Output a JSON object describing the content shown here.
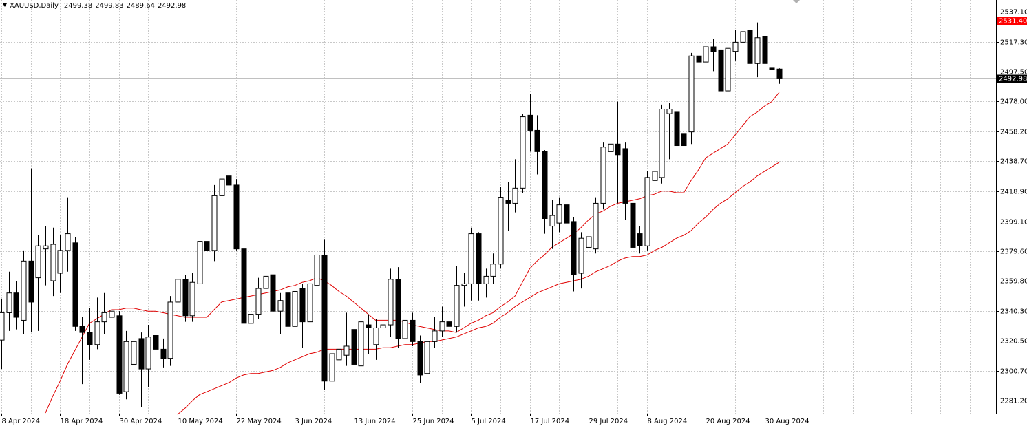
{
  "chart_data": {
    "type": "candlestick",
    "title": "XAUUSD,Daily",
    "categories": [
      "8 Apr 2024",
      null,
      null,
      null,
      null,
      null,
      null,
      null,
      "18 Apr 2024",
      null,
      null,
      null,
      null,
      null,
      null,
      null,
      "30 Apr 2024",
      null,
      null,
      null,
      null,
      null,
      null,
      null,
      "10 May 2024",
      null,
      null,
      null,
      null,
      null,
      null,
      null,
      "22 May 2024",
      null,
      null,
      null,
      null,
      null,
      null,
      null,
      "3 Jun 2024",
      null,
      null,
      null,
      null,
      null,
      null,
      null,
      "13 Jun 2024",
      null,
      null,
      null,
      null,
      null,
      null,
      null,
      "25 Jun 2024",
      null,
      null,
      null,
      null,
      null,
      null,
      null,
      "5 Jul 2024",
      null,
      null,
      null,
      null,
      null,
      null,
      null,
      "17 Jul 2024",
      null,
      null,
      null,
      null,
      null,
      null,
      null,
      "29 Jul 2024",
      null,
      null,
      null,
      null,
      null,
      null,
      null,
      "8 Aug 2024",
      null,
      null,
      null,
      null,
      null,
      null,
      null,
      "20 Aug 2024",
      null,
      null,
      null,
      null,
      null,
      null,
      null,
      "30 Aug 2024",
      null,
      null
    ],
    "open": [
      2321,
      2339,
      2352,
      2334,
      2373,
      2362,
      2381,
      2360,
      2365,
      2380,
      2385,
      2330,
      2326,
      2318,
      2333,
      2336,
      2337,
      2287,
      2305,
      2322,
      2302,
      2324,
      2315,
      2309,
      2346,
      2361,
      2337,
      2358,
      2386,
      2380,
      2416,
      2429,
      2423,
      2381,
      2332,
      2338,
      2355,
      2364,
      2340,
      2352,
      2330,
      2355,
      2333,
      2357,
      2377,
      2294,
      2308,
      2311,
      2328,
      2304,
      2331,
      2318,
      2329,
      2331,
      2361,
      2322,
      2334,
      2320,
      2299,
      2320,
      2327,
      2333,
      2330,
      2357,
      2358,
      2391,
      2358,
      2363,
      2371,
      2413,
      2411,
      2421,
      2469,
      2459,
      2445,
      2396,
      2398,
      2410,
      2399,
      2365,
      2382,
      2381,
      2411,
      2445,
      2450,
      2447,
      2411,
      2391,
      2383,
      2426,
      2428,
      2470,
      2471,
      2457,
      2458,
      2508,
      2504,
      2514,
      2512,
      2485,
      2511,
      2517,
      2525,
      2503,
      2521,
      2500,
      2499.38
    ],
    "high": [
      2348,
      2366,
      2360,
      2380,
      2434,
      2390,
      2396,
      2395,
      2390,
      2415,
      2389,
      2336,
      2342,
      2349,
      2352,
      2347,
      2340,
      2327,
      2325,
      2326,
      2331,
      2330,
      2322,
      2350,
      2378,
      2364,
      2365,
      2390,
      2396,
      2423,
      2452,
      2434,
      2427,
      2384,
      2346,
      2362,
      2371,
      2366,
      2352,
      2357,
      2358,
      2358,
      2363,
      2380,
      2387,
      2318,
      2321,
      2339,
      2329,
      2342,
      2338,
      2335,
      2343,
      2368,
      2369,
      2342,
      2339,
      2324,
      2325,
      2336,
      2343,
      2341,
      2370,
      2365,
      2395,
      2392,
      2368,
      2378,
      2422,
      2425,
      2440,
      2470,
      2483,
      2469,
      2446,
      2413,
      2415,
      2423,
      2402,
      2392,
      2396,
      2415,
      2451,
      2461,
      2478,
      2451,
      2414,
      2396,
      2432,
      2440,
      2476,
      2477,
      2481,
      2464,
      2510,
      2512,
      2531.4,
      2519,
      2516,
      2516,
      2525,
      2530,
      2531,
      2530,
      2527,
      2506,
      2499.83
    ],
    "low": [
      2302,
      2327,
      2328,
      2325,
      2326,
      2327,
      2357,
      2350,
      2352,
      2366,
      2327,
      2292,
      2308,
      2315,
      2325,
      2330,
      2285,
      2282,
      2295,
      2277,
      2290,
      2306,
      2303,
      2304,
      2342,
      2333,
      2333,
      2352,
      2365,
      2373,
      2400,
      2404,
      2380,
      2330,
      2327,
      2335,
      2347,
      2336,
      2325,
      2319,
      2325,
      2316,
      2330,
      2355,
      2288,
      2288,
      2303,
      2304,
      2300,
      2300,
      2312,
      2308,
      2320,
      2323,
      2316,
      2318,
      2317,
      2293,
      2296,
      2316,
      2323,
      2326,
      2326,
      2343,
      2347,
      2347,
      2349,
      2358,
      2368,
      2393,
      2405,
      2418,
      2445,
      2430,
      2391,
      2381,
      2392,
      2384,
      2353,
      2355,
      2370,
      2378,
      2407,
      2428,
      2411,
      2400,
      2364,
      2378,
      2380,
      2420,
      2424,
      2440,
      2437,
      2432,
      2450,
      2480,
      2495,
      2498,
      2474,
      2484,
      2505,
      2500,
      2492,
      2494,
      2499,
      2489,
      2489.64
    ],
    "close": [
      2339,
      2352,
      2336,
      2373,
      2346,
      2383,
      2383,
      2384,
      2380,
      2391,
      2330,
      2326,
      2318,
      2333,
      2339,
      2340,
      2286,
      2320,
      2320,
      2302,
      2323,
      2315,
      2309,
      2346,
      2361,
      2337,
      2359,
      2386,
      2380,
      2416,
      2427,
      2423,
      2381,
      2332,
      2338,
      2355,
      2363,
      2340,
      2347,
      2330,
      2353,
      2333,
      2358,
      2377,
      2294,
      2312,
      2315,
      2317,
      2305,
      2333,
      2329,
      2329,
      2331,
      2361,
      2322,
      2334,
      2320,
      2298,
      2320,
      2327,
      2333,
      2330,
      2357,
      2358,
      2391,
      2358,
      2363,
      2371,
      2415,
      2411,
      2421,
      2468,
      2459,
      2445,
      2401,
      2403,
      2410,
      2398,
      2364,
      2388,
      2389,
      2411,
      2448,
      2450,
      2443,
      2411,
      2382,
      2383,
      2428,
      2432,
      2473,
      2473,
      2449,
      2449,
      2508,
      2504,
      2514,
      2511,
      2485,
      2513,
      2517,
      2524,
      2503,
      2520,
      2503,
      2499,
      2492.98
    ],
    "up_color": "#ffffff",
    "down_color": "#000000",
    "series": [
      {
        "color": "#e00000",
        "values": [
          null,
          null,
          null,
          null,
          null,
          null,
          2273,
          2284,
          2294,
          2305,
          2314,
          2323,
          2332,
          2335,
          2338,
          2341,
          2341,
          2342,
          2342,
          2341,
          2340,
          2340,
          2339,
          2338,
          2337,
          2336,
          2336,
          2336,
          2336,
          2341,
          2346,
          2347,
          2348,
          2349,
          2350,
          2351,
          2352,
          2353,
          2354,
          2356,
          2357,
          2359,
          2360,
          2362,
          2360,
          2357,
          2353,
          2350,
          2346,
          2342,
          2338,
          2334,
          2334,
          2334,
          2334,
          2333,
          2331,
          2330,
          2329,
          2328,
          2327,
          2327,
          2326,
          2329,
          2332,
          2334,
          2337,
          2339,
          2343,
          2346,
          2350,
          2359,
          2368,
          2373,
          2377,
          2382,
          2385,
          2388,
          2391,
          2395,
          2400,
          2404,
          2406,
          2409,
          2411,
          2412,
          2413,
          2414,
          2416,
          2417,
          2419,
          2419,
          2418,
          2418,
          2426,
          2433,
          2441,
          2444,
          2447,
          2450,
          2456,
          2462,
          2468,
          2471,
          2475,
          2478,
          2484
        ]
      },
      {
        "color": "#e00000",
        "values": [
          null,
          null,
          null,
          null,
          null,
          null,
          null,
          null,
          null,
          null,
          null,
          null,
          null,
          null,
          null,
          null,
          null,
          null,
          null,
          null,
          null,
          null,
          null,
          null,
          2272,
          2276,
          2281,
          2285,
          2287,
          2289,
          2291,
          2293,
          2296,
          2298,
          2299,
          2299,
          2300,
          2301,
          2303,
          2306,
          2308,
          2310,
          2312,
          2313,
          2315,
          2315,
          2315,
          2315,
          2315,
          2315,
          2315,
          2315,
          2316,
          2316,
          2317,
          2318,
          2318,
          2319,
          2320,
          2320,
          2321,
          2322,
          2323,
          2325,
          2327,
          2329,
          2330,
          2332,
          2336,
          2339,
          2343,
          2346,
          2349,
          2352,
          2354,
          2356,
          2358,
          2359,
          2360,
          2361,
          2363,
          2366,
          2368,
          2370,
          2373,
          2375,
          2376,
          2376,
          2377,
          2380,
          2382,
          2385,
          2388,
          2390,
          2393,
          2398,
          2402,
          2407,
          2411,
          2414,
          2418,
          2422,
          2425,
          2429,
          2432,
          2435,
          2438
        ]
      }
    ],
    "ylim": [
      2272.6,
      2544.8
    ],
    "yticks": [
      {
        "value": 2537.1,
        "label": "2537.10"
      },
      {
        "value": 2517.3,
        "label": "2517.30"
      },
      {
        "value": 2497.5,
        "label": "2497.50"
      },
      {
        "value": 2478.0,
        "label": "2478.00"
      },
      {
        "value": 2458.2,
        "label": "2458.20"
      },
      {
        "value": 2438.7,
        "label": "2438.70"
      },
      {
        "value": 2418.9,
        "label": "2418.90"
      },
      {
        "value": 2399.1,
        "label": "2399.10"
      },
      {
        "value": 2379.6,
        "label": "2379.60"
      },
      {
        "value": 2359.8,
        "label": "2359.80"
      },
      {
        "value": 2340.3,
        "label": "2340.30"
      },
      {
        "value": 2320.5,
        "label": "2320.50"
      },
      {
        "value": 2300.7,
        "label": "2300.70"
      },
      {
        "value": 2281.2,
        "label": "2281.20"
      }
    ],
    "hline": {
      "value": 2531.4,
      "label": "2531.40",
      "color": "#ff0000"
    },
    "last_price_line_color": "#c0c0c0",
    "grid": true
  }
}
